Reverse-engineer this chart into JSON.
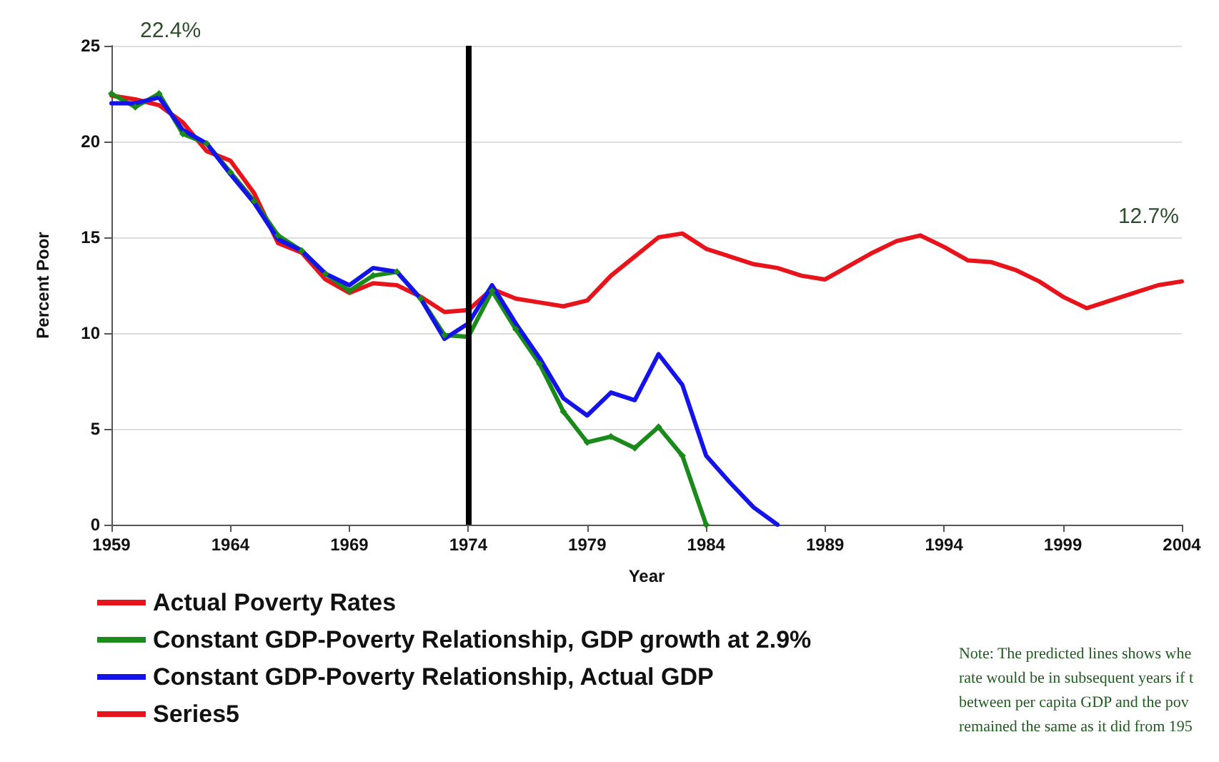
{
  "chart_data": {
    "type": "line",
    "xlabel": "Year",
    "ylabel": "Percent Poor",
    "xlim": [
      1959,
      2004
    ],
    "xticks": [
      1959,
      1964,
      1969,
      1974,
      1979,
      1984,
      1989,
      1994,
      1999,
      2004
    ],
    "ylim": [
      0,
      25
    ],
    "yticks": [
      0,
      5,
      10,
      15,
      20,
      25
    ],
    "grid": "y",
    "legend": "bottom left",
    "marker": "none",
    "line_style": "solid",
    "ref_lines": [
      {
        "axis": "x",
        "value": 1974,
        "color": "#000000"
      }
    ],
    "annotations": [
      {
        "text": "22.4%",
        "x": 1959,
        "y": 22.4
      },
      {
        "text": "12.7%",
        "x": 2004,
        "y": 12.7
      },
      "Note: The predicted lines shows whe\nrate would be in subsequent years if t\nbetween per capita GDP and the pov\nremained the same as it did from 195"
    ],
    "series": [
      {
        "name": "Actual Poverty Rates",
        "color": "#e8141c",
        "x": [
          1959,
          1960,
          1961,
          1962,
          1963,
          1964,
          1965,
          1966,
          1967,
          1968,
          1969,
          1970,
          1971,
          1972,
          1973,
          1974,
          1975,
          1976,
          1977,
          1978,
          1979,
          1980,
          1981,
          1982,
          1983,
          1984,
          1985,
          1986,
          1987,
          1988,
          1989,
          1990,
          1991,
          1992,
          1993,
          1994,
          1995,
          1996,
          1997,
          1998,
          1999,
          2000,
          2001,
          2002,
          2003,
          2004
        ],
        "values": [
          22.4,
          22.2,
          21.9,
          21.0,
          19.5,
          19.0,
          17.3,
          14.7,
          14.2,
          12.8,
          12.1,
          12.6,
          12.5,
          11.9,
          11.1,
          11.2,
          12.3,
          11.8,
          11.6,
          11.4,
          11.7,
          13.0,
          14.0,
          15.0,
          15.2,
          14.4,
          14.0,
          13.6,
          13.4,
          13.0,
          12.8,
          13.5,
          14.2,
          14.8,
          15.1,
          14.5,
          13.8,
          13.7,
          13.3,
          12.7,
          11.9,
          11.3,
          11.7,
          12.1,
          12.5,
          12.7
        ]
      },
      {
        "name": "Constant GDP-Poverty Relationship, GDP growth at 2.9%",
        "color": "#1a8a1a",
        "marker": "diamond",
        "x": [
          1959,
          1960,
          1961,
          1962,
          1963,
          1964,
          1965,
          1966,
          1967,
          1968,
          1969,
          1970,
          1971,
          1972,
          1973,
          1974,
          1975,
          1976,
          1977,
          1978,
          1979,
          1980,
          1981,
          1982,
          1983,
          1984
        ],
        "values": [
          22.5,
          21.8,
          22.5,
          20.4,
          19.9,
          18.4,
          16.9,
          15.1,
          14.3,
          13.1,
          12.2,
          13.0,
          13.2,
          11.8,
          9.9,
          9.8,
          12.2,
          10.2,
          8.4,
          5.9,
          4.3,
          4.6,
          4.0,
          5.1,
          3.6,
          0
        ]
      },
      {
        "name": "Constant GDP-Poverty Relationship, Actual GDP",
        "color": "#1414e8",
        "x": [
          1959,
          1960,
          1961,
          1962,
          1963,
          1964,
          1965,
          1966,
          1967,
          1968,
          1969,
          1970,
          1971,
          1972,
          1973,
          1974,
          1975,
          1976,
          1977,
          1978,
          1979,
          1980,
          1981,
          1982,
          1983,
          1984,
          1985,
          1986,
          1987
        ],
        "values": [
          22.0,
          22.0,
          22.3,
          20.6,
          19.9,
          18.3,
          16.8,
          14.9,
          14.3,
          13.1,
          12.5,
          13.4,
          13.2,
          11.8,
          9.7,
          10.5,
          12.5,
          10.5,
          8.7,
          6.6,
          5.7,
          6.9,
          6.5,
          8.9,
          7.3,
          3.6,
          2.2,
          0.9,
          0
        ]
      },
      {
        "name": "Series5",
        "color": "#e8141c"
      }
    ]
  }
}
